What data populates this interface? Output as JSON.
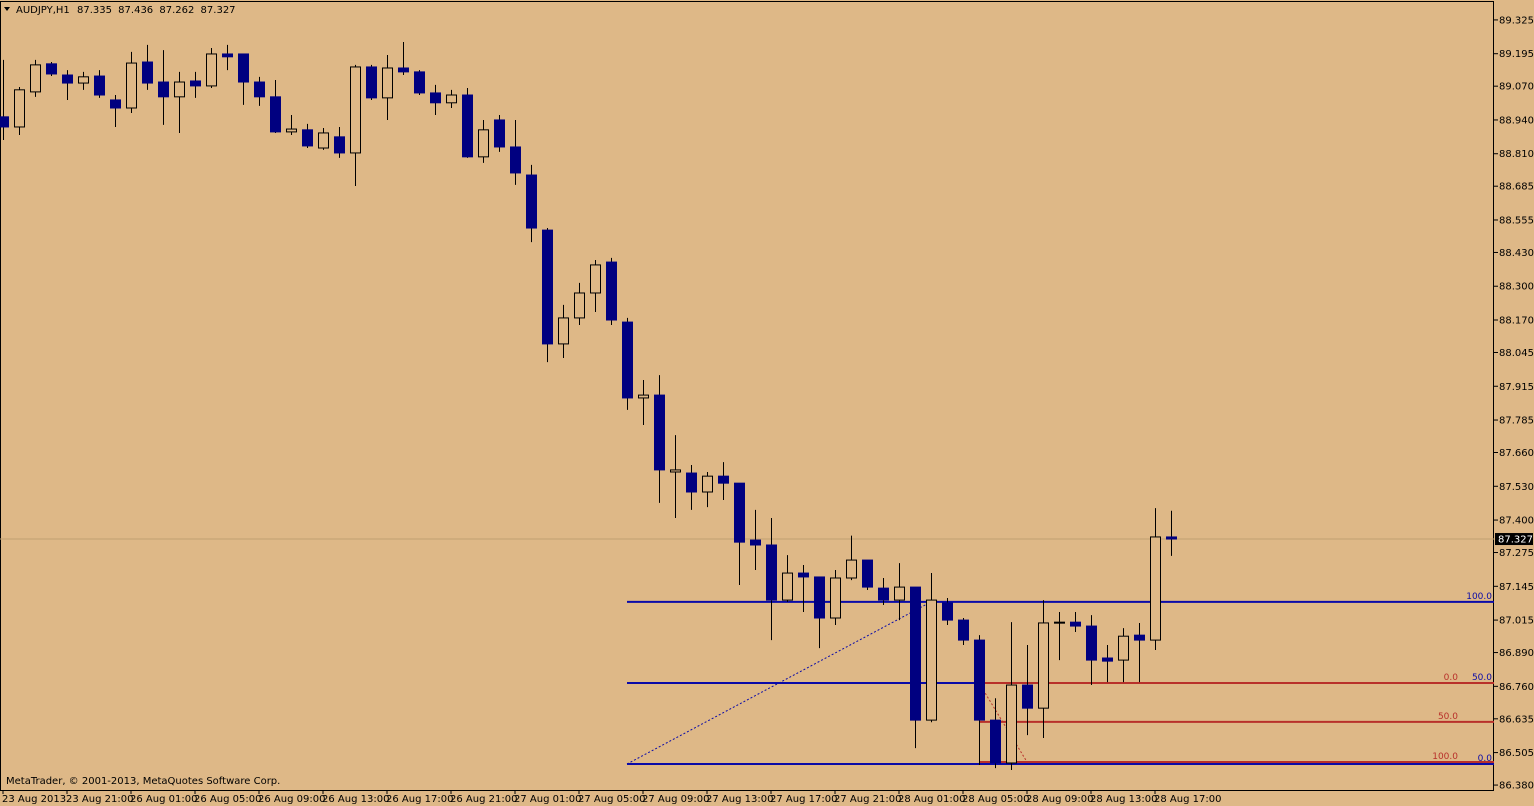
{
  "chart_data": {
    "type": "candlestick",
    "title": "AUDJPY,H1",
    "note": "MetaTrader, © 2001-2013, MetaQuotes Software Corp.",
    "categories": [
      "23 Aug 2013",
      null,
      null,
      null,
      "23 Aug 21:00",
      null,
      null,
      null,
      "26 Aug 01:00",
      null,
      null,
      null,
      "26 Aug 05:00",
      null,
      null,
      null,
      "26 Aug 09:00",
      null,
      null,
      null,
      "26 Aug 13:00",
      null,
      null,
      null,
      "26 Aug 17:00",
      null,
      null,
      null,
      "26 Aug 21:00",
      null,
      null,
      null,
      "27 Aug 01:00",
      null,
      null,
      null,
      "27 Aug 05:00",
      null,
      null,
      null,
      "27 Aug 09:00",
      null,
      null,
      null,
      "27 Aug 13:00",
      null,
      null,
      null,
      "27 Aug 17:00",
      null,
      null,
      null,
      "27 Aug 21:00",
      null,
      null,
      null,
      "28 Aug 01:00",
      null,
      null,
      null,
      "28 Aug 05:00",
      null,
      null,
      null,
      "28 Aug 09:00",
      null,
      null,
      null,
      "28 Aug 13:00",
      null,
      null,
      null,
      "28 Aug 17:00",
      null
    ],
    "open": [
      88.952,
      88.913,
      89.048,
      89.156,
      89.113,
      89.082,
      89.109,
      89.017,
      88.986,
      89.163,
      89.086,
      89.029,
      89.09,
      89.071,
      89.194,
      89.194,
      89.086,
      89.029,
      88.894,
      88.902,
      88.832,
      88.875,
      88.813,
      89.144,
      89.025,
      89.14,
      89.125,
      89.044,
      89.006,
      89.036,
      88.798,
      88.94,
      88.836,
      88.728,
      88.516,
      88.078,
      88.178,
      88.274,
      88.393,
      88.162,
      87.87,
      87.881,
      87.585,
      87.581,
      87.508,
      87.569,
      87.542,
      87.323,
      87.304,
      87.092,
      87.196,
      87.181,
      87.023,
      87.177,
      87.246,
      87.138,
      87.092,
      87.142,
      86.63,
      87.081,
      87.015,
      86.938,
      86.63,
      86.465,
      86.765,
      86.676,
      87.004,
      87.007,
      86.992,
      86.869,
      86.861,
      86.957,
      86.938,
      87.335
    ],
    "high": [
      89.171,
      89.067,
      89.171,
      89.163,
      89.132,
      89.125,
      89.132,
      89.036,
      89.202,
      89.229,
      89.209,
      89.125,
      89.125,
      89.217,
      89.229,
      89.194,
      89.106,
      89.094,
      88.959,
      88.925,
      88.909,
      88.913,
      89.152,
      89.152,
      89.19,
      89.24,
      89.132,
      89.075,
      89.056,
      89.063,
      88.94,
      88.959,
      88.94,
      88.767,
      88.524,
      88.228,
      88.313,
      88.401,
      88.409,
      88.178,
      87.939,
      87.958,
      87.727,
      87.612,
      87.585,
      87.623,
      87.542,
      87.439,
      87.408,
      87.265,
      87.227,
      87.181,
      87.208,
      87.34,
      87.246,
      87.177,
      87.234,
      87.142,
      87.196,
      87.1,
      87.023,
      86.957,
      86.714,
      87.007,
      86.919,
      87.092,
      87.046,
      87.046,
      87.034,
      86.919,
      86.984,
      87.004,
      87.446,
      87.436
    ],
    "low": [
      88.863,
      88.882,
      89.029,
      89.109,
      89.017,
      89.056,
      89.025,
      88.913,
      88.967,
      89.056,
      88.921,
      88.89,
      89.025,
      89.063,
      89.132,
      88.998,
      88.994,
      88.89,
      88.882,
      88.832,
      88.825,
      88.794,
      88.686,
      89.017,
      88.94,
      89.113,
      89.036,
      88.959,
      88.986,
      88.794,
      88.775,
      88.817,
      88.69,
      88.47,
      88.008,
      88.024,
      88.151,
      88.201,
      88.151,
      87.824,
      87.766,
      87.466,
      87.408,
      87.439,
      87.45,
      87.477,
      87.15,
      87.208,
      86.938,
      87.085,
      87.046,
      86.907,
      86.996,
      87.169,
      87.131,
      87.073,
      87.015,
      86.522,
      86.622,
      86.996,
      86.919,
      86.457,
      86.445,
      86.438,
      86.572,
      86.561,
      86.861,
      86.969,
      86.765,
      86.776,
      86.776,
      86.776,
      86.9,
      87.262
    ],
    "close": [
      88.913,
      89.056,
      89.152,
      89.117,
      89.082,
      89.106,
      89.036,
      88.986,
      89.159,
      89.082,
      89.029,
      89.086,
      89.071,
      89.194,
      89.183,
      89.086,
      89.029,
      88.894,
      88.905,
      88.84,
      88.89,
      88.813,
      89.144,
      89.025,
      89.14,
      89.125,
      89.044,
      89.006,
      89.036,
      88.798,
      88.902,
      88.836,
      88.736,
      88.524,
      88.078,
      88.178,
      88.274,
      88.382,
      88.17,
      87.87,
      87.881,
      87.593,
      87.593,
      87.508,
      87.569,
      87.542,
      87.315,
      87.304,
      87.092,
      87.196,
      87.181,
      87.023,
      87.177,
      87.246,
      87.142,
      87.092,
      87.142,
      86.63,
      87.092,
      87.015,
      86.938,
      86.63,
      86.465,
      86.765,
      86.676,
      87.004,
      87.007,
      86.992,
      86.861,
      86.857,
      86.953,
      86.938,
      87.335,
      87.327
    ],
    "bull_color": "#deb887",
    "bear_color": "#000080",
    "ylim": [
      86.361,
      89.394
    ],
    "yticks": [
      {
        "value": 89.325,
        "label": "89.325"
      },
      {
        "value": 89.195,
        "label": "89.195"
      },
      {
        "value": 89.07,
        "label": "89.070"
      },
      {
        "value": 88.94,
        "label": "88.940"
      },
      {
        "value": 88.81,
        "label": "88.810"
      },
      {
        "value": 88.685,
        "label": "88.685"
      },
      {
        "value": 88.555,
        "label": "88.555"
      },
      {
        "value": 88.43,
        "label": "88.430"
      },
      {
        "value": 88.3,
        "label": "88.300"
      },
      {
        "value": 88.17,
        "label": "88.170"
      },
      {
        "value": 88.045,
        "label": "88.045"
      },
      {
        "value": 87.915,
        "label": "87.915"
      },
      {
        "value": 87.785,
        "label": "87.785"
      },
      {
        "value": 87.66,
        "label": "87.660"
      },
      {
        "value": 87.53,
        "label": "87.530"
      },
      {
        "value": 87.4,
        "label": "87.400"
      },
      {
        "value": 87.275,
        "label": "87.275"
      },
      {
        "value": 87.145,
        "label": "87.145"
      },
      {
        "value": 87.015,
        "label": "87.015"
      },
      {
        "value": 86.89,
        "label": "86.890"
      },
      {
        "value": 86.76,
        "label": "86.760"
      },
      {
        "value": 86.635,
        "label": "86.635"
      },
      {
        "value": 86.505,
        "label": "86.505"
      },
      {
        "value": 86.38,
        "label": "86.380"
      }
    ],
    "fibonacci": [
      {
        "color": "#0a0aa8",
        "trend": [
          [
            39,
            86.461
          ],
          [
            58,
            87.085
          ]
        ],
        "levels": [
          {
            "value": 87.085,
            "label": "100.0"
          },
          {
            "value": 86.773,
            "label": "50.0"
          },
          {
            "value": 86.461,
            "label": "0.0"
          }
        ]
      },
      {
        "color": "#b8302a",
        "trend": [
          [
            61,
            86.773
          ],
          [
            64,
            86.469
          ]
        ],
        "levels": [
          {
            "value": 86.773,
            "label": "0.0"
          },
          {
            "value": 86.623,
            "label": "50.0"
          },
          {
            "value": 86.469,
            "label": "100.0"
          }
        ]
      }
    ]
  }
}
